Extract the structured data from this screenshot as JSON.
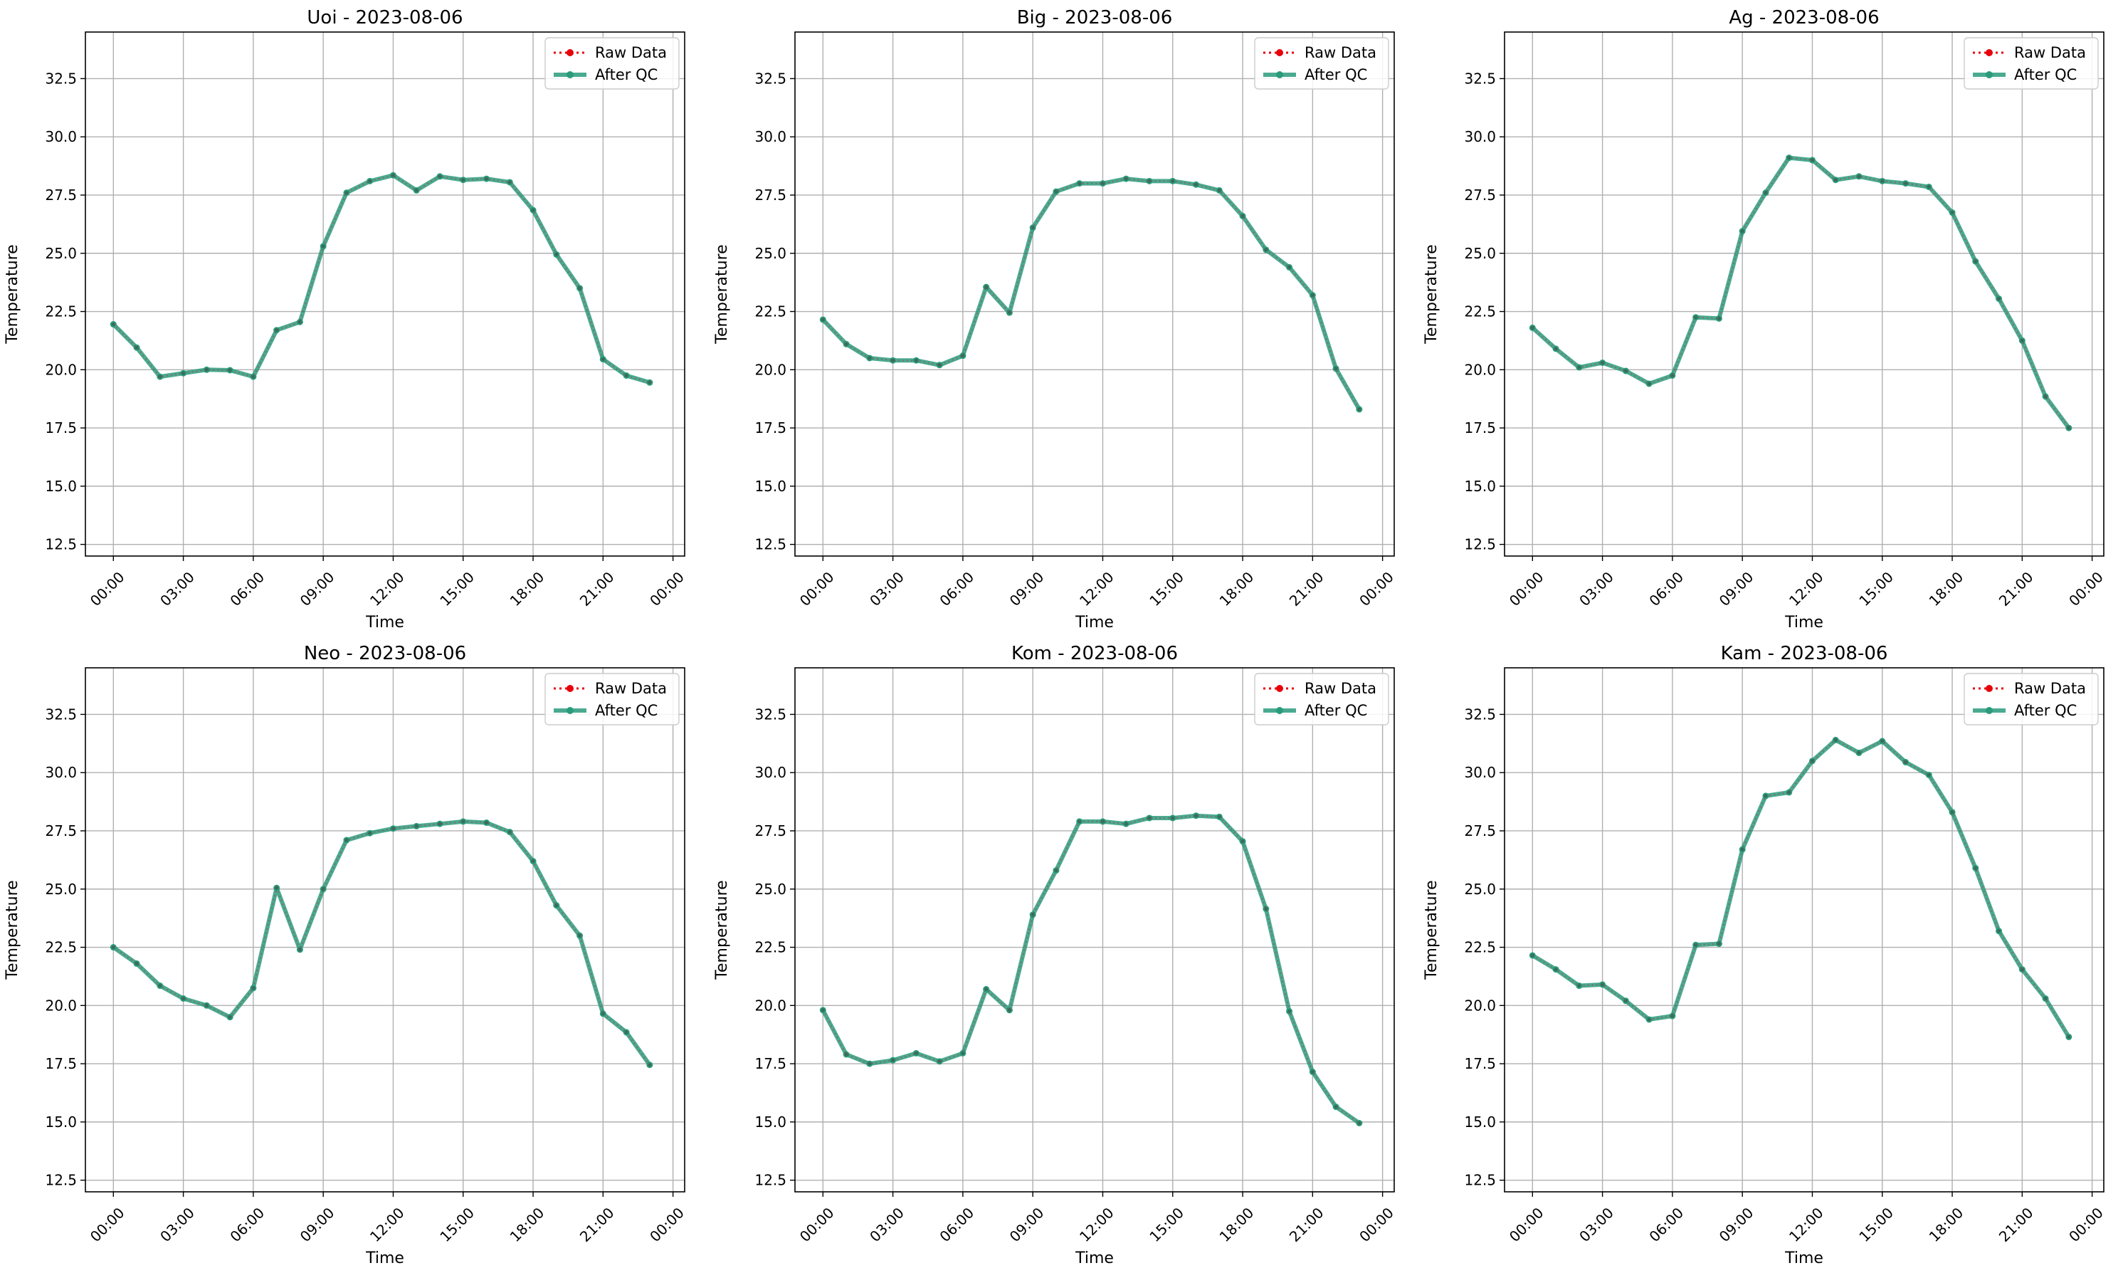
{
  "colors": {
    "raw": "#e8000b",
    "qc": "#2a9b7c",
    "grid": "#b0b0b0",
    "axis": "#000000",
    "legend_border": "#cccccc"
  },
  "chart_data": [
    {
      "type": "line",
      "title": "Uoi - 2023-08-06",
      "xlabel": "Time",
      "ylabel": "Temperature",
      "x_hours": [
        0,
        1,
        2,
        3,
        4,
        5,
        6,
        7,
        8,
        9,
        10,
        11,
        12,
        13,
        14,
        15,
        16,
        17,
        18,
        19,
        20,
        21,
        22,
        23
      ],
      "x_ticks": [
        "00:00",
        "03:00",
        "06:00",
        "09:00",
        "12:00",
        "15:00",
        "18:00",
        "21:00",
        "00:00"
      ],
      "y_ticks": [
        "12.5",
        "15.0",
        "17.5",
        "20.0",
        "22.5",
        "25.0",
        "27.5",
        "30.0",
        "32.5"
      ],
      "xlim": [
        -1.2,
        24.5
      ],
      "ylim": [
        12.0,
        34.5
      ],
      "grid": true,
      "legend_position": "top-right",
      "series": [
        {
          "name": "Raw Data",
          "style": "dotted",
          "values": [
            21.95,
            20.95,
            19.7,
            19.85,
            20.0,
            19.98,
            19.7,
            21.7,
            22.05,
            25.3,
            27.6,
            28.1,
            28.35,
            27.7,
            28.3,
            28.15,
            28.2,
            28.05,
            26.85,
            24.95,
            23.5,
            20.45,
            19.75,
            19.45
          ]
        },
        {
          "name": "After QC",
          "style": "solid",
          "values": [
            21.95,
            20.95,
            19.7,
            19.85,
            20.0,
            19.98,
            19.7,
            21.7,
            22.05,
            25.3,
            27.6,
            28.1,
            28.35,
            27.7,
            28.3,
            28.15,
            28.2,
            28.05,
            26.85,
            24.95,
            23.5,
            20.45,
            19.75,
            19.45
          ]
        }
      ]
    },
    {
      "type": "line",
      "title": "Big - 2023-08-06",
      "xlabel": "Time",
      "ylabel": "Temperature",
      "x_hours": [
        0,
        1,
        2,
        3,
        4,
        5,
        6,
        7,
        8,
        9,
        10,
        11,
        12,
        13,
        14,
        15,
        16,
        17,
        18,
        19,
        20,
        21,
        22,
        23
      ],
      "x_ticks": [
        "00:00",
        "03:00",
        "06:00",
        "09:00",
        "12:00",
        "15:00",
        "18:00",
        "21:00",
        "00:00"
      ],
      "y_ticks": [
        "12.5",
        "15.0",
        "17.5",
        "20.0",
        "22.5",
        "25.0",
        "27.5",
        "30.0",
        "32.5"
      ],
      "xlim": [
        -1.2,
        24.5
      ],
      "ylim": [
        12.0,
        34.5
      ],
      "grid": true,
      "legend_position": "top-right",
      "series": [
        {
          "name": "Raw Data",
          "style": "dotted",
          "values": [
            22.15,
            21.1,
            20.5,
            20.4,
            20.4,
            20.2,
            20.6,
            23.55,
            22.45,
            26.1,
            27.65,
            28.0,
            28.0,
            28.2,
            28.1,
            28.1,
            27.95,
            27.7,
            26.6,
            25.15,
            24.4,
            23.2,
            20.05,
            18.3
          ]
        },
        {
          "name": "After QC",
          "style": "solid",
          "values": [
            22.15,
            21.1,
            20.5,
            20.4,
            20.4,
            20.2,
            20.6,
            23.55,
            22.45,
            26.1,
            27.65,
            28.0,
            28.0,
            28.2,
            28.1,
            28.1,
            27.95,
            27.7,
            26.6,
            25.15,
            24.4,
            23.2,
            20.05,
            18.3
          ]
        }
      ]
    },
    {
      "type": "line",
      "title": "Ag - 2023-08-06",
      "xlabel": "Time",
      "ylabel": "Temperature",
      "x_hours": [
        0,
        1,
        2,
        3,
        4,
        5,
        6,
        7,
        8,
        9,
        10,
        11,
        12,
        13,
        14,
        15,
        16,
        17,
        18,
        19,
        20,
        21,
        22,
        23
      ],
      "x_ticks": [
        "00:00",
        "03:00",
        "06:00",
        "09:00",
        "12:00",
        "15:00",
        "18:00",
        "21:00",
        "00:00"
      ],
      "y_ticks": [
        "12.5",
        "15.0",
        "17.5",
        "20.0",
        "22.5",
        "25.0",
        "27.5",
        "30.0",
        "32.5"
      ],
      "xlim": [
        -1.2,
        24.5
      ],
      "ylim": [
        12.0,
        34.5
      ],
      "grid": true,
      "legend_position": "top-right",
      "series": [
        {
          "name": "Raw Data",
          "style": "dotted",
          "values": [
            21.8,
            20.9,
            20.1,
            20.3,
            19.95,
            19.4,
            19.75,
            22.25,
            22.2,
            25.95,
            27.6,
            29.1,
            29.0,
            28.15,
            28.3,
            28.1,
            28.0,
            27.85,
            26.75,
            24.65,
            23.05,
            21.25,
            18.85,
            17.5
          ]
        },
        {
          "name": "After QC",
          "style": "solid",
          "values": [
            21.8,
            20.9,
            20.1,
            20.3,
            19.95,
            19.4,
            19.75,
            22.25,
            22.2,
            25.95,
            27.6,
            29.1,
            29.0,
            28.15,
            28.3,
            28.1,
            28.0,
            27.85,
            26.75,
            24.65,
            23.05,
            21.25,
            18.85,
            17.5
          ]
        }
      ]
    },
    {
      "type": "line",
      "title": "Neo - 2023-08-06",
      "xlabel": "Time",
      "ylabel": "Temperature",
      "x_hours": [
        0,
        1,
        2,
        3,
        4,
        5,
        6,
        7,
        8,
        9,
        10,
        11,
        12,
        13,
        14,
        15,
        16,
        17,
        18,
        19,
        20,
        21,
        22,
        23
      ],
      "x_ticks": [
        "00:00",
        "03:00",
        "06:00",
        "09:00",
        "12:00",
        "15:00",
        "18:00",
        "21:00",
        "00:00"
      ],
      "y_ticks": [
        "12.5",
        "15.0",
        "17.5",
        "20.0",
        "22.5",
        "25.0",
        "27.5",
        "30.0",
        "32.5"
      ],
      "xlim": [
        -1.2,
        24.5
      ],
      "ylim": [
        12.0,
        34.5
      ],
      "grid": true,
      "legend_position": "top-right",
      "series": [
        {
          "name": "Raw Data",
          "style": "dotted",
          "values": [
            22.5,
            21.8,
            20.85,
            20.3,
            20.0,
            19.5,
            20.75,
            25.05,
            22.4,
            25.0,
            27.1,
            27.4,
            27.6,
            27.7,
            27.8,
            27.9,
            27.85,
            27.45,
            26.2,
            24.3,
            23.0,
            19.65,
            18.85,
            17.45
          ]
        },
        {
          "name": "After QC",
          "style": "solid",
          "values": [
            22.5,
            21.8,
            20.85,
            20.3,
            20.0,
            19.5,
            20.75,
            25.05,
            22.4,
            25.0,
            27.1,
            27.4,
            27.6,
            27.7,
            27.8,
            27.9,
            27.85,
            27.45,
            26.2,
            24.3,
            23.0,
            19.65,
            18.85,
            17.45
          ]
        }
      ]
    },
    {
      "type": "line",
      "title": "Kom - 2023-08-06",
      "xlabel": "Time",
      "ylabel": "Temperature",
      "x_hours": [
        0,
        1,
        2,
        3,
        4,
        5,
        6,
        7,
        8,
        9,
        10,
        11,
        12,
        13,
        14,
        15,
        16,
        17,
        18,
        19,
        20,
        21,
        22,
        23
      ],
      "x_ticks": [
        "00:00",
        "03:00",
        "06:00",
        "09:00",
        "12:00",
        "15:00",
        "18:00",
        "21:00",
        "00:00"
      ],
      "y_ticks": [
        "12.5",
        "15.0",
        "17.5",
        "20.0",
        "22.5",
        "25.0",
        "27.5",
        "30.0",
        "32.5"
      ],
      "xlim": [
        -1.2,
        24.5
      ],
      "ylim": [
        12.0,
        34.5
      ],
      "grid": true,
      "legend_position": "top-right",
      "series": [
        {
          "name": "Raw Data",
          "style": "dotted",
          "values": [
            19.8,
            17.9,
            17.5,
            17.65,
            17.95,
            17.6,
            17.95,
            20.7,
            19.8,
            23.9,
            25.8,
            27.9,
            27.9,
            27.8,
            28.05,
            28.05,
            28.15,
            28.1,
            27.05,
            24.15,
            19.75,
            17.15,
            15.65,
            14.95
          ]
        },
        {
          "name": "After QC",
          "style": "solid",
          "values": [
            19.8,
            17.9,
            17.5,
            17.65,
            17.95,
            17.6,
            17.95,
            20.7,
            19.8,
            23.9,
            25.8,
            27.9,
            27.9,
            27.8,
            28.05,
            28.05,
            28.15,
            28.1,
            27.05,
            24.15,
            19.75,
            17.15,
            15.65,
            14.95
          ]
        }
      ]
    },
    {
      "type": "line",
      "title": "Kam - 2023-08-06",
      "xlabel": "Time",
      "ylabel": "Temperature",
      "x_hours": [
        0,
        1,
        2,
        3,
        4,
        5,
        6,
        7,
        8,
        9,
        10,
        11,
        12,
        13,
        14,
        15,
        16,
        17,
        18,
        19,
        20,
        21,
        22,
        23
      ],
      "x_ticks": [
        "00:00",
        "03:00",
        "06:00",
        "09:00",
        "12:00",
        "15:00",
        "18:00",
        "21:00",
        "00:00"
      ],
      "y_ticks": [
        "12.5",
        "15.0",
        "17.5",
        "20.0",
        "22.5",
        "25.0",
        "27.5",
        "30.0",
        "32.5"
      ],
      "xlim": [
        -1.2,
        24.5
      ],
      "ylim": [
        12.0,
        34.5
      ],
      "grid": true,
      "legend_position": "top-right",
      "series": [
        {
          "name": "Raw Data",
          "style": "dotted",
          "values": [
            22.15,
            21.55,
            20.85,
            20.9,
            20.2,
            19.4,
            19.55,
            22.6,
            22.65,
            26.7,
            29.0,
            29.15,
            30.5,
            31.4,
            30.85,
            31.35,
            30.45,
            29.9,
            28.3,
            25.9,
            23.2,
            21.55,
            20.3,
            18.65
          ]
        },
        {
          "name": "After QC",
          "style": "solid",
          "values": [
            22.15,
            21.55,
            20.85,
            20.9,
            20.2,
            19.4,
            19.55,
            22.6,
            22.65,
            26.7,
            29.0,
            29.15,
            30.5,
            31.4,
            30.85,
            31.35,
            30.45,
            29.9,
            28.3,
            25.9,
            23.2,
            21.55,
            20.3,
            18.65
          ]
        }
      ]
    }
  ]
}
